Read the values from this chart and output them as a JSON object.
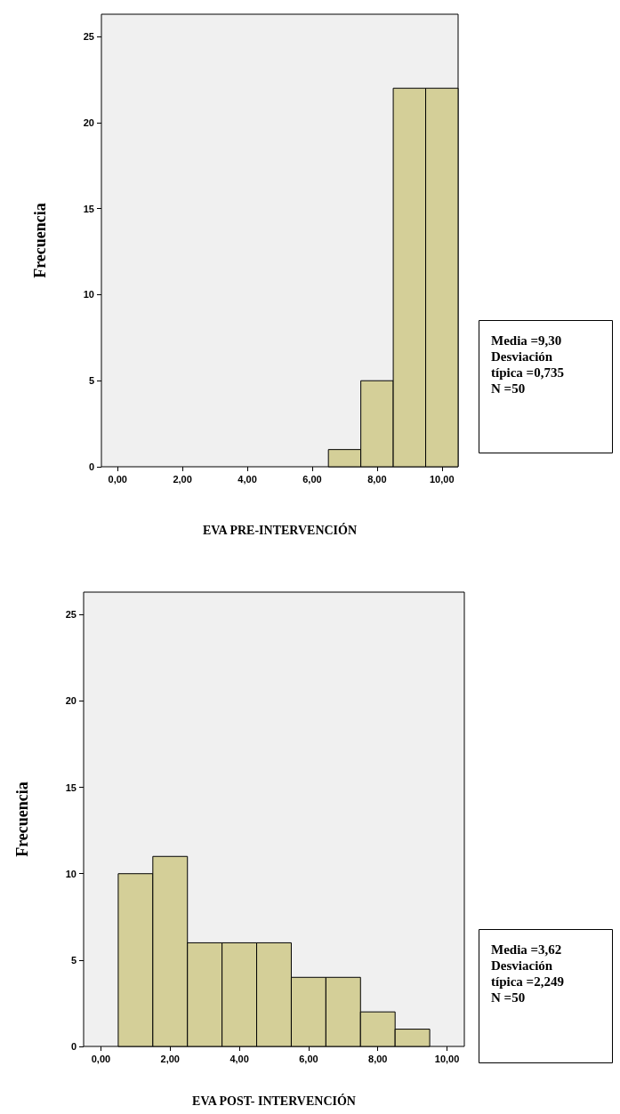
{
  "chart_data": [
    {
      "type": "histogram",
      "xlabel": "EVA PRE-INTERVENCIÓN",
      "ylabel": "Frecuencia",
      "bins": [
        6.5,
        7.5,
        8.5,
        9.5,
        10.5
      ],
      "values": [
        1,
        5,
        22,
        22
      ],
      "color": "#d4cf98",
      "xlim": [
        -0.5,
        10.5
      ],
      "xticks": [
        {
          "value": 0,
          "label": "0,00"
        },
        {
          "value": 2,
          "label": "2,00"
        },
        {
          "value": 4,
          "label": "4,00"
        },
        {
          "value": 6,
          "label": "6,00"
        },
        {
          "value": 8,
          "label": "8,00"
        },
        {
          "value": 10,
          "label": "10,00"
        }
      ],
      "ylim": [
        0,
        26.3
      ],
      "yticks": [
        0,
        5,
        10,
        15,
        20,
        25
      ],
      "grid": false,
      "annotations": [
        "Media =9,30",
        "Desviación típica =0,735",
        "N =50"
      ]
    },
    {
      "type": "histogram",
      "xlabel": "EVA POST- INTERVENCIÓN",
      "ylabel": "Frecuencia",
      "bins": [
        0.5,
        1.5,
        2.5,
        3.5,
        4.5,
        5.5,
        6.5,
        7.5,
        8.5,
        9.5
      ],
      "values": [
        10,
        11,
        6,
        6,
        6,
        4,
        4,
        2,
        1
      ],
      "color": "#d4cf98",
      "xlim": [
        -0.5,
        10.5
      ],
      "xticks": [
        {
          "value": 0,
          "label": "0,00"
        },
        {
          "value": 2,
          "label": "2,00"
        },
        {
          "value": 4,
          "label": "4,00"
        },
        {
          "value": 6,
          "label": "6,00"
        },
        {
          "value": 8,
          "label": "8,00"
        },
        {
          "value": 10,
          "label": "10,00"
        }
      ],
      "ylim": [
        0,
        26.3
      ],
      "yticks": [
        0,
        5,
        10,
        15,
        20,
        25
      ],
      "grid": false,
      "annotations": [
        "Media =3,62",
        "Desviación típica =2,249",
        "N =50"
      ]
    }
  ]
}
